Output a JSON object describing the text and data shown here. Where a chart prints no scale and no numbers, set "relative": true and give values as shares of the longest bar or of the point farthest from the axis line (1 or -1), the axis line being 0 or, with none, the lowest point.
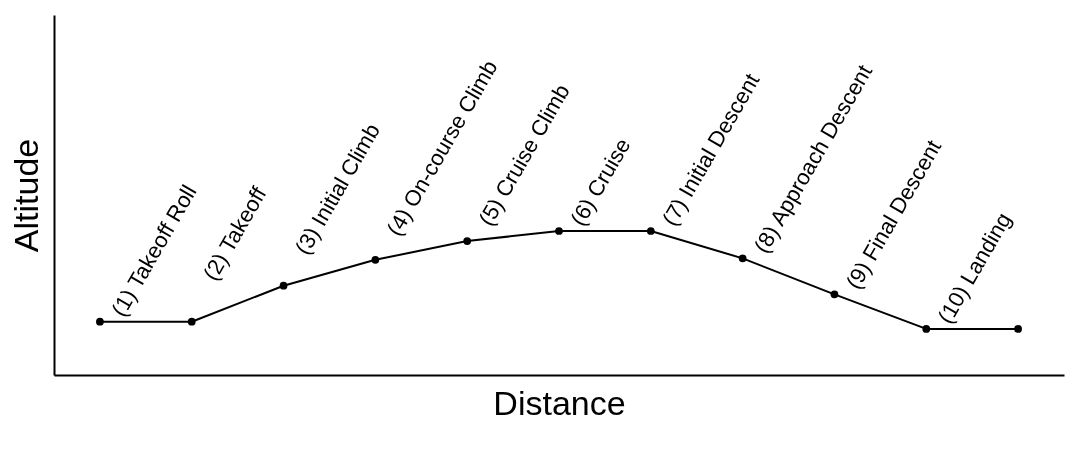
{
  "chart_data": {
    "type": "line",
    "relative": true,
    "xlabel": "Distance",
    "ylabel": "Altitude",
    "categories": [
      null,
      null,
      null,
      null,
      null,
      null,
      null,
      null,
      null,
      null,
      null
    ],
    "series": [
      {
        "color": "#000000",
        "values": [
          0.37,
          0.37,
          0.62,
          0.8,
          0.93,
          1,
          1,
          0.81,
          0.56,
          0.32,
          0.32
        ]
      }
    ],
    "marker": "circle",
    "line_style": "solid",
    "grid": false,
    "annotations": [
      "(1) Takeoff Roll",
      "(2) Takeoff",
      "(3) Initial Climb",
      "(4) On-course Climb",
      "(5) Cruise Climb",
      "(6) Cruise",
      "(7) Initial Descent",
      "(8) Approach Descent",
      "(9) Final Descent",
      "(10) Landing"
    ]
  }
}
